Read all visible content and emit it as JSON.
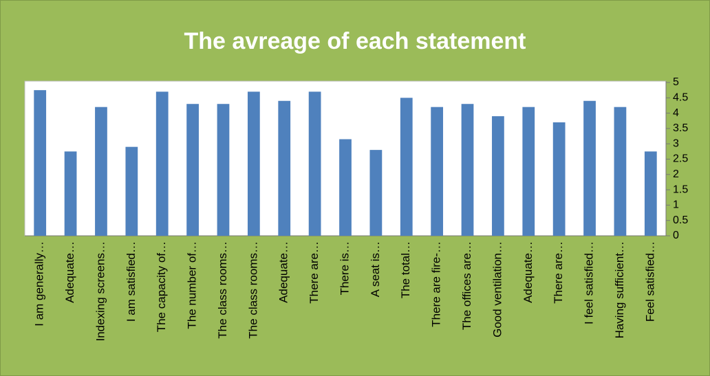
{
  "chart_data": {
    "type": "bar",
    "title": "The avreage of each statement",
    "categories": [
      "I am generally…",
      "Adequate…",
      "Indexing screens…",
      "I am satisfied…",
      "The capacity of…",
      "The number of…",
      "The class rooms…",
      "The class rooms…",
      "Adequate…",
      "There are…",
      "There is…",
      "A seat is…",
      "The total…",
      "There are fire-…",
      "The offices are…",
      "Good ventilation…",
      "Adequate…",
      "There are…",
      "I feel satisfied…",
      "Having sufficient…",
      "Feel satisfied…"
    ],
    "values": [
      4.75,
      2.75,
      4.2,
      2.9,
      4.7,
      4.3,
      4.3,
      4.7,
      4.4,
      4.7,
      3.15,
      2.8,
      4.5,
      4.2,
      4.3,
      3.9,
      4.2,
      3.7,
      4.4,
      4.2,
      2.75
    ],
    "color": "#4f81bd",
    "ylim": [
      0,
      5
    ],
    "yticks": [
      0,
      0.5,
      1,
      1.5,
      2,
      2.5,
      3,
      3.5,
      4,
      4.5,
      5
    ],
    "grid": false
  }
}
